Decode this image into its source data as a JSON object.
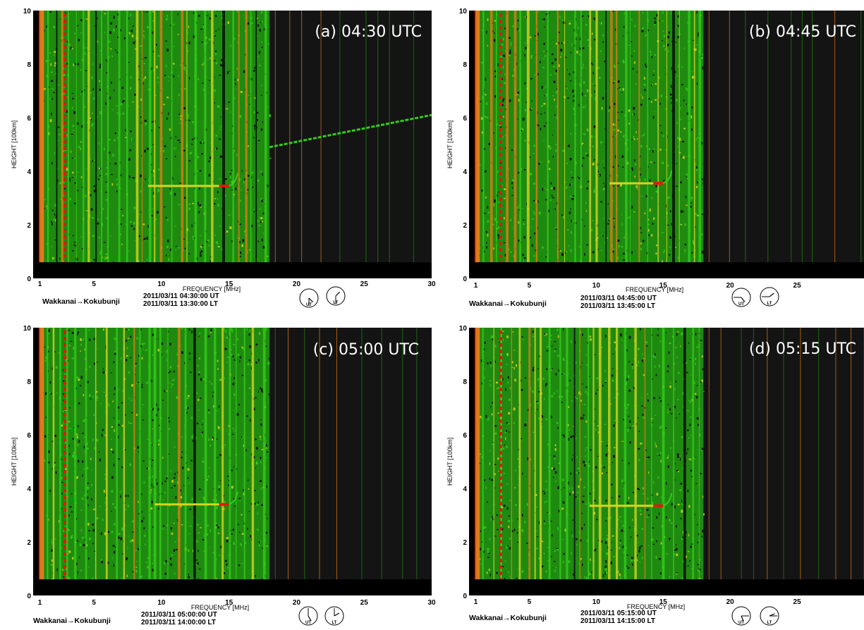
{
  "chart_data": [
    {
      "type": "heatmap",
      "title": "(a) 04:30 UTC",
      "xlabel": "FREQUENCY [MHz]",
      "ylabel": "HEIGHT [100km]",
      "xlim": [
        0.5,
        30
      ],
      "ylim": [
        0,
        10
      ],
      "xticks": [
        1,
        5,
        10,
        15,
        20,
        25,
        30
      ],
      "yticks": [
        0,
        2,
        4,
        6,
        8,
        10
      ],
      "path_label": "Wakkanai→Kokubunji",
      "ut_text": "2011/03/11  04:30:00  UT",
      "lt_text": "2011/03/11  13:30:00  LT",
      "clock_ut": "UT",
      "clock_lt": "LT",
      "clock_ut_time": "04:30",
      "clock_lt_time": "13:30",
      "trace_height": 3.45,
      "trace_freq_range": [
        9,
        15
      ],
      "vertical_band_edge_mhz": 18,
      "es_trace": {
        "freq_range": [
          18,
          30
        ],
        "height_range": [
          4.9,
          6.1
        ]
      }
    },
    {
      "type": "heatmap",
      "title": "(b) 04:45 UTC",
      "xlabel": "FREQUENCY [MHz]",
      "ylabel": "HEIGHT [100km]",
      "xlim": [
        0.5,
        30
      ],
      "ylim": [
        0,
        10
      ],
      "xticks": [
        1,
        5,
        10,
        15,
        20,
        25
      ],
      "yticks": [
        0,
        2,
        4,
        6,
        8,
        10
      ],
      "path_label": "Wakkanai→Kokubunji",
      "ut_text": "2011/03/11  04:45:00  UT",
      "lt_text": "2011/03/11  13:45:00  LT",
      "clock_ut": "UT",
      "clock_lt": "LT",
      "clock_ut_time": "04:45",
      "clock_lt_time": "13:45",
      "trace_height": 3.55,
      "trace_freq_range": [
        11,
        15
      ],
      "vertical_band_edge_mhz": 18
    },
    {
      "type": "heatmap",
      "title": "(c) 05:00 UTC",
      "xlabel": "FREQUENCY [MHz]",
      "ylabel": "HEIGHT [100km]",
      "xlim": [
        0.5,
        30
      ],
      "ylim": [
        0,
        10
      ],
      "xticks": [
        1,
        5,
        10,
        15,
        20,
        25,
        30
      ],
      "yticks": [
        0,
        2,
        4,
        6,
        8,
        10
      ],
      "path_label": "Wakkanai→Kokubunji",
      "ut_text": "2011/03/11  05:00:00  UT",
      "lt_text": "2011/03/11  14:00:00  LT",
      "clock_ut": "UT",
      "clock_lt": "LT",
      "clock_ut_time": "05:00",
      "clock_lt_time": "14:00",
      "trace_height": 3.4,
      "trace_freq_range": [
        9.5,
        15
      ],
      "vertical_band_edge_mhz": 18
    },
    {
      "type": "heatmap",
      "title": "(d) 05:15 UTC",
      "xlabel": "FREQUENCY [MHz]",
      "ylabel": "HEIGHT [100km]",
      "xlim": [
        0.5,
        30
      ],
      "ylim": [
        0,
        10
      ],
      "xticks": [
        1,
        5,
        10,
        15,
        20,
        25
      ],
      "yticks": [
        0,
        2,
        4,
        6,
        8,
        10
      ],
      "path_label": "Wakkanai→Kokubunji",
      "ut_text": "2011/03/11  05:15:00  UT",
      "lt_text": "2011/03/11  14:15:00  LT",
      "clock_ut": "UT",
      "clock_lt": "LT",
      "clock_ut_time": "05:15",
      "clock_lt_time": "14:15",
      "trace_height": 3.35,
      "trace_freq_range": [
        9.5,
        15
      ],
      "vertical_band_edge_mhz": 18
    }
  ],
  "colors": {
    "background": "#141414",
    "green": "#33cc1a",
    "green_dark": "#1f8a10",
    "yellow": "#d8d51c",
    "orange": "#e07a18",
    "red": "#e01a0d",
    "black": "#000000",
    "title_text": "#ffffff"
  }
}
